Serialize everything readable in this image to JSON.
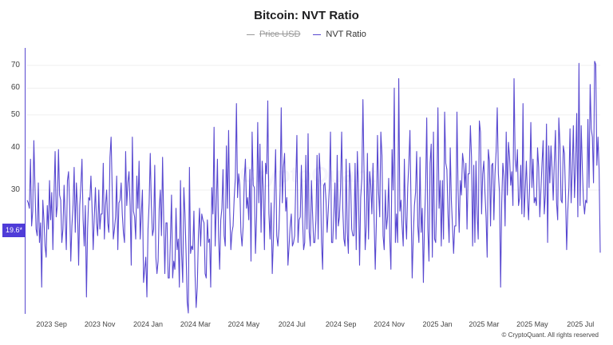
{
  "chart_data": {
    "type": "line",
    "title": "Bitcoin: NVT Ratio",
    "legend": [
      {
        "name": "Price USD",
        "color": "#9a9a9a",
        "hidden": true
      },
      {
        "name": "NVT Ratio",
        "color": "#5848d0",
        "hidden": false
      }
    ],
    "y_scale": "log",
    "y_ticks": [
      30,
      40,
      50,
      60,
      70
    ],
    "ylim": [
      13,
      78
    ],
    "x_ticks": [
      "2023 Sep",
      "2023 Nov",
      "2024 Jan",
      "2024 Mar",
      "2024 May",
      "2024 Jul",
      "2024 Sep",
      "2024 Nov",
      "2025 Jan",
      "2025 Mar",
      "2025 May",
      "2025 Jul"
    ],
    "x_range": [
      "2023-08-01",
      "2025-07-26"
    ],
    "current_value_label": "19.6*",
    "series": [
      {
        "name": "NVT Ratio",
        "color": "#5848d0",
        "values": [
          28,
          27.5,
          26.5,
          37,
          23.5,
          26,
          42,
          30.5,
          23,
          22,
          31.5,
          21,
          24,
          15.5,
          28,
          24.5,
          20.5,
          19,
          27,
          23,
          32,
          24.5,
          29.5,
          20,
          29,
          39,
          25,
          27,
          39.5,
          29,
          28,
          21,
          23,
          31,
          24.5,
          20,
          32,
          34,
          27,
          18.5,
          23.5,
          27,
          35,
          22.5,
          31.5,
          26.5,
          18,
          27,
          31,
          37,
          24.5,
          20.5,
          27,
          14.5,
          23,
          28.5,
          28,
          33,
          26.5,
          20,
          25,
          30.5,
          24,
          22,
          30,
          23,
          25.5,
          25.5,
          36,
          21.5,
          27,
          30,
          24,
          22.5,
          37.5,
          43,
          30,
          21.5,
          23,
          25,
          33,
          20,
          27.5,
          28,
          31.5,
          25.5,
          22.5,
          21,
          39,
          27,
          31.5,
          34,
          27,
          18,
          43,
          26,
          25,
          21.5,
          33,
          26.5,
          36.5,
          21.5,
          25.5,
          30,
          16,
          17.5,
          19,
          14.5,
          23,
          27.5,
          38.5,
          27,
          22,
          23,
          35.5,
          19,
          17,
          18.5,
          26.5,
          30,
          22,
          37.5,
          24.5,
          17,
          24,
          24,
          16.5,
          16.5,
          21.5,
          29,
          16.5,
          18.5,
          17.5,
          26.5,
          20,
          21.5,
          15.5,
          32,
          19.5,
          16,
          30.5,
          25.5,
          19.5,
          14,
          13,
          35,
          19.5,
          20.5,
          20,
          26,
          17,
          13.5,
          15.5,
          22,
          26.5,
          20.5,
          25.5,
          24.5,
          24,
          17,
          16.5,
          24.5,
          21,
          21.5,
          15.5,
          30.5,
          25.5,
          46,
          20.5,
          27,
          37,
          22,
          17.5,
          24.5,
          26.5,
          34.5,
          22,
          20.5,
          40.5,
          26.5,
          45,
          26,
          20,
          22.5,
          23.5,
          28.5,
          32.5,
          54,
          28.5,
          33.5,
          31,
          22.5,
          20.5,
          23.5,
          32,
          37,
          26.5,
          28.5,
          24.5,
          34.5,
          18.5,
          44.5,
          31,
          30.5,
          19.5,
          25,
          47.5,
          27.5,
          41,
          22.5,
          36.5,
          29.5,
          20,
          36,
          33.5,
          55,
          25.5,
          21.5,
          27.5,
          17,
          21.5,
          30,
          39.5,
          22,
          20.5,
          23,
          30,
          52.5,
          27.5,
          35,
          38.5,
          26,
          28.5,
          18,
          20.5,
          23.5,
          25.5,
          20.5,
          21,
          22,
          31.5,
          43.5,
          21,
          24.5,
          25,
          35.5,
          25,
          20,
          21,
          38,
          23,
          44,
          22.5,
          20.5,
          32,
          25.5,
          21,
          21,
          24.5,
          38,
          21.5,
          38.5,
          33,
          21,
          17.5,
          31,
          31.5,
          28,
          22.5,
          26,
          30.5,
          44.5,
          21,
          21,
          25.5,
          31.5,
          21.5,
          38,
          23.5,
          25,
          30.5,
          44.5,
          26.5,
          21.5,
          20.5,
          37,
          22.5,
          19.5,
          36,
          31.5,
          23,
          22,
          22,
          36,
          20,
          39,
          30,
          18,
          28.5,
          32.5,
          55.5,
          33.5,
          20,
          23.5,
          38.5,
          21.5,
          34,
          31,
          25.5,
          36,
          24.5,
          17.5,
          24,
          43.5,
          29.5,
          25,
          44.5,
          38,
          22,
          20,
          30,
          23,
          25,
          32.5,
          21.5,
          17.5,
          39.5,
          30,
          60,
          21,
          25.5,
          21,
          64,
          26,
          28,
          23.5,
          20.5,
          37,
          25,
          21.5,
          30.5,
          36,
          45,
          27,
          16.5,
          22,
          27,
          29.5,
          39,
          23.5,
          21,
          37.5,
          22.5,
          26.5,
          16,
          24,
          30.5,
          49,
          23,
          18.5,
          36,
          41,
          19,
          44.5,
          21.5,
          21,
          29,
          52.5,
          26.5,
          32,
          20.5,
          32,
          21.5,
          51,
          36,
          34.5,
          25.5,
          21,
          40,
          28,
          23.5,
          19.5,
          23.5,
          23.5,
          51,
          30,
          22.5,
          32,
          29,
          38.5,
          36,
          30.5,
          36,
          23,
          33.5,
          33.5,
          46.5,
          37.5,
          20.5,
          35.5,
          21,
          36.5,
          25.5,
          21.5,
          48,
          44.5,
          25.5,
          33.5,
          36.5,
          29.5,
          25,
          19,
          39.5,
          36.5,
          23.5,
          35.5,
          36,
          24.5,
          33.5,
          39,
          52.5,
          33.5,
          29.5,
          15.5,
          27.5,
          36,
          33,
          23.5,
          44.5,
          29,
          41.5,
          37.5,
          31,
          34,
          27,
          64,
          37,
          34,
          39.5,
          27,
          28.5,
          35.5,
          25.5,
          54,
          25,
          30,
          36.5,
          28.5,
          24.5,
          31.5,
          47.5,
          30.5,
          37,
          27.5,
          28.5,
          27,
          40,
          35,
          25,
          30,
          36,
          42,
          25.5,
          29,
          47,
          21,
          40.5,
          31.5,
          40.5,
          34.5,
          28,
          36.5,
          45,
          27.5,
          24.5,
          49,
          41,
          28,
          27.5,
          40.5,
          38.5,
          29,
          20,
          26,
          30.5,
          45.5,
          27.5,
          34.5,
          46.5,
          28.5,
          35.5,
          50.5,
          25,
          71,
          27,
          46.5,
          35,
          28,
          25.5,
          28,
          27.5,
          48.5,
          30.5,
          61.5,
          45.5,
          43,
          31.5,
          72,
          70.5,
          35.5,
          43,
          34.5,
          19.6
        ]
      }
    ]
  },
  "copyright": "© CryptoQuant. All rights reserved",
  "watermark": "CryptoQuant"
}
